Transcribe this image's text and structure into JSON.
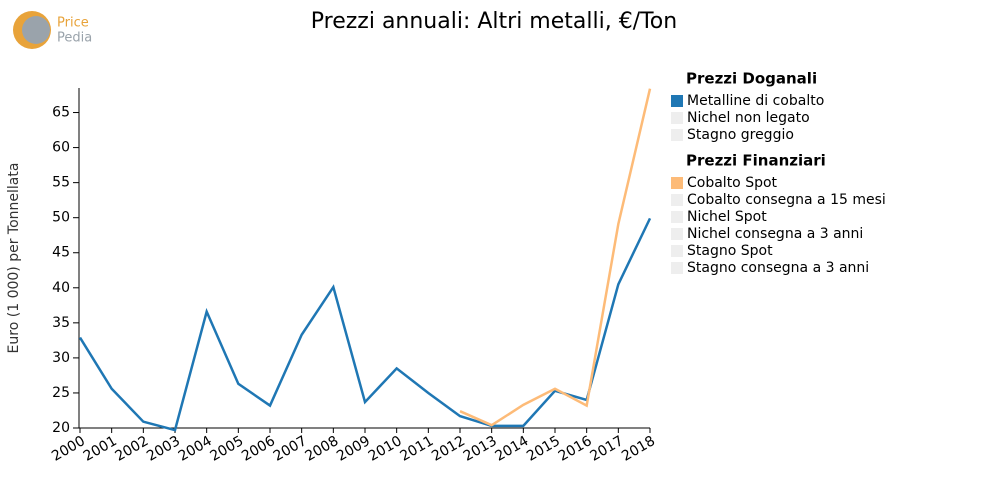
{
  "logo": {
    "line1": "Price",
    "line2": "Pedia"
  },
  "chart_data": {
    "type": "line",
    "title": "Prezzi annuali: Altri metalli, €/Ton",
    "y_label": "Euro (1 000) per Tonnellata",
    "categories": [
      "2000",
      "2001",
      "2002",
      "2003",
      "2004",
      "2005",
      "2006",
      "2007",
      "2008",
      "2009",
      "2010",
      "2011",
      "2012",
      "2013",
      "2014",
      "2015",
      "2016",
      "2017",
      "2018"
    ],
    "ylim": [
      20,
      68.5
    ],
    "yticks": [
      20,
      25,
      30,
      35,
      40,
      45,
      50,
      55,
      60,
      65
    ],
    "legend_groups": [
      "Prezzi Doganali",
      "Prezzi Finanziari"
    ],
    "series": [
      {
        "name": "Metalline di cobalto",
        "group": 0,
        "color": "#1f77b4",
        "values": [
          32.9,
          25.6,
          20.9,
          19.7,
          36.6,
          26.3,
          23.2,
          33.3,
          40.1,
          23.7,
          28.5,
          25.0,
          21.7,
          20.3,
          20.3,
          25.3,
          24.0,
          40.5,
          49.9
        ]
      },
      {
        "name": "Nichel non legato",
        "group": 0,
        "color": "#eeeeee",
        "values": [
          null,
          null,
          null,
          null,
          null,
          null,
          null,
          null,
          null,
          null,
          null,
          null,
          null,
          null,
          null,
          null,
          null,
          null,
          null
        ]
      },
      {
        "name": "Stagno greggio",
        "group": 0,
        "color": "#eeeeee",
        "values": [
          null,
          null,
          null,
          null,
          null,
          null,
          null,
          null,
          null,
          null,
          null,
          null,
          null,
          null,
          null,
          null,
          null,
          null,
          null
        ]
      },
      {
        "name": "Cobalto Spot",
        "group": 1,
        "color": "#fdbb78",
        "values": [
          null,
          null,
          null,
          null,
          null,
          null,
          null,
          null,
          null,
          null,
          null,
          null,
          22.4,
          20.4,
          23.3,
          25.6,
          23.2,
          49.1,
          68.4
        ]
      },
      {
        "name": "Cobalto consegna a 15 mesi",
        "group": 1,
        "color": "#eeeeee",
        "values": [
          null,
          null,
          null,
          null,
          null,
          null,
          null,
          null,
          null,
          null,
          null,
          null,
          null,
          null,
          null,
          null,
          null,
          null,
          null
        ]
      },
      {
        "name": "Nichel Spot",
        "group": 1,
        "color": "#eeeeee",
        "values": [
          null,
          null,
          null,
          null,
          null,
          null,
          null,
          null,
          null,
          null,
          null,
          null,
          null,
          null,
          null,
          null,
          null,
          null,
          null
        ]
      },
      {
        "name": "Nichel consegna a 3 anni",
        "group": 1,
        "color": "#eeeeee",
        "values": [
          null,
          null,
          null,
          null,
          null,
          null,
          null,
          null,
          null,
          null,
          null,
          null,
          null,
          null,
          null,
          null,
          null,
          null,
          null
        ]
      },
      {
        "name": "Stagno Spot",
        "group": 1,
        "color": "#eeeeee",
        "values": [
          null,
          null,
          null,
          null,
          null,
          null,
          null,
          null,
          null,
          null,
          null,
          null,
          null,
          null,
          null,
          null,
          null,
          null,
          null
        ]
      },
      {
        "name": "Stagno consegna a 3 anni",
        "group": 1,
        "color": "#eeeeee",
        "values": [
          null,
          null,
          null,
          null,
          null,
          null,
          null,
          null,
          null,
          null,
          null,
          null,
          null,
          null,
          null,
          null,
          null,
          null,
          null
        ]
      }
    ]
  }
}
